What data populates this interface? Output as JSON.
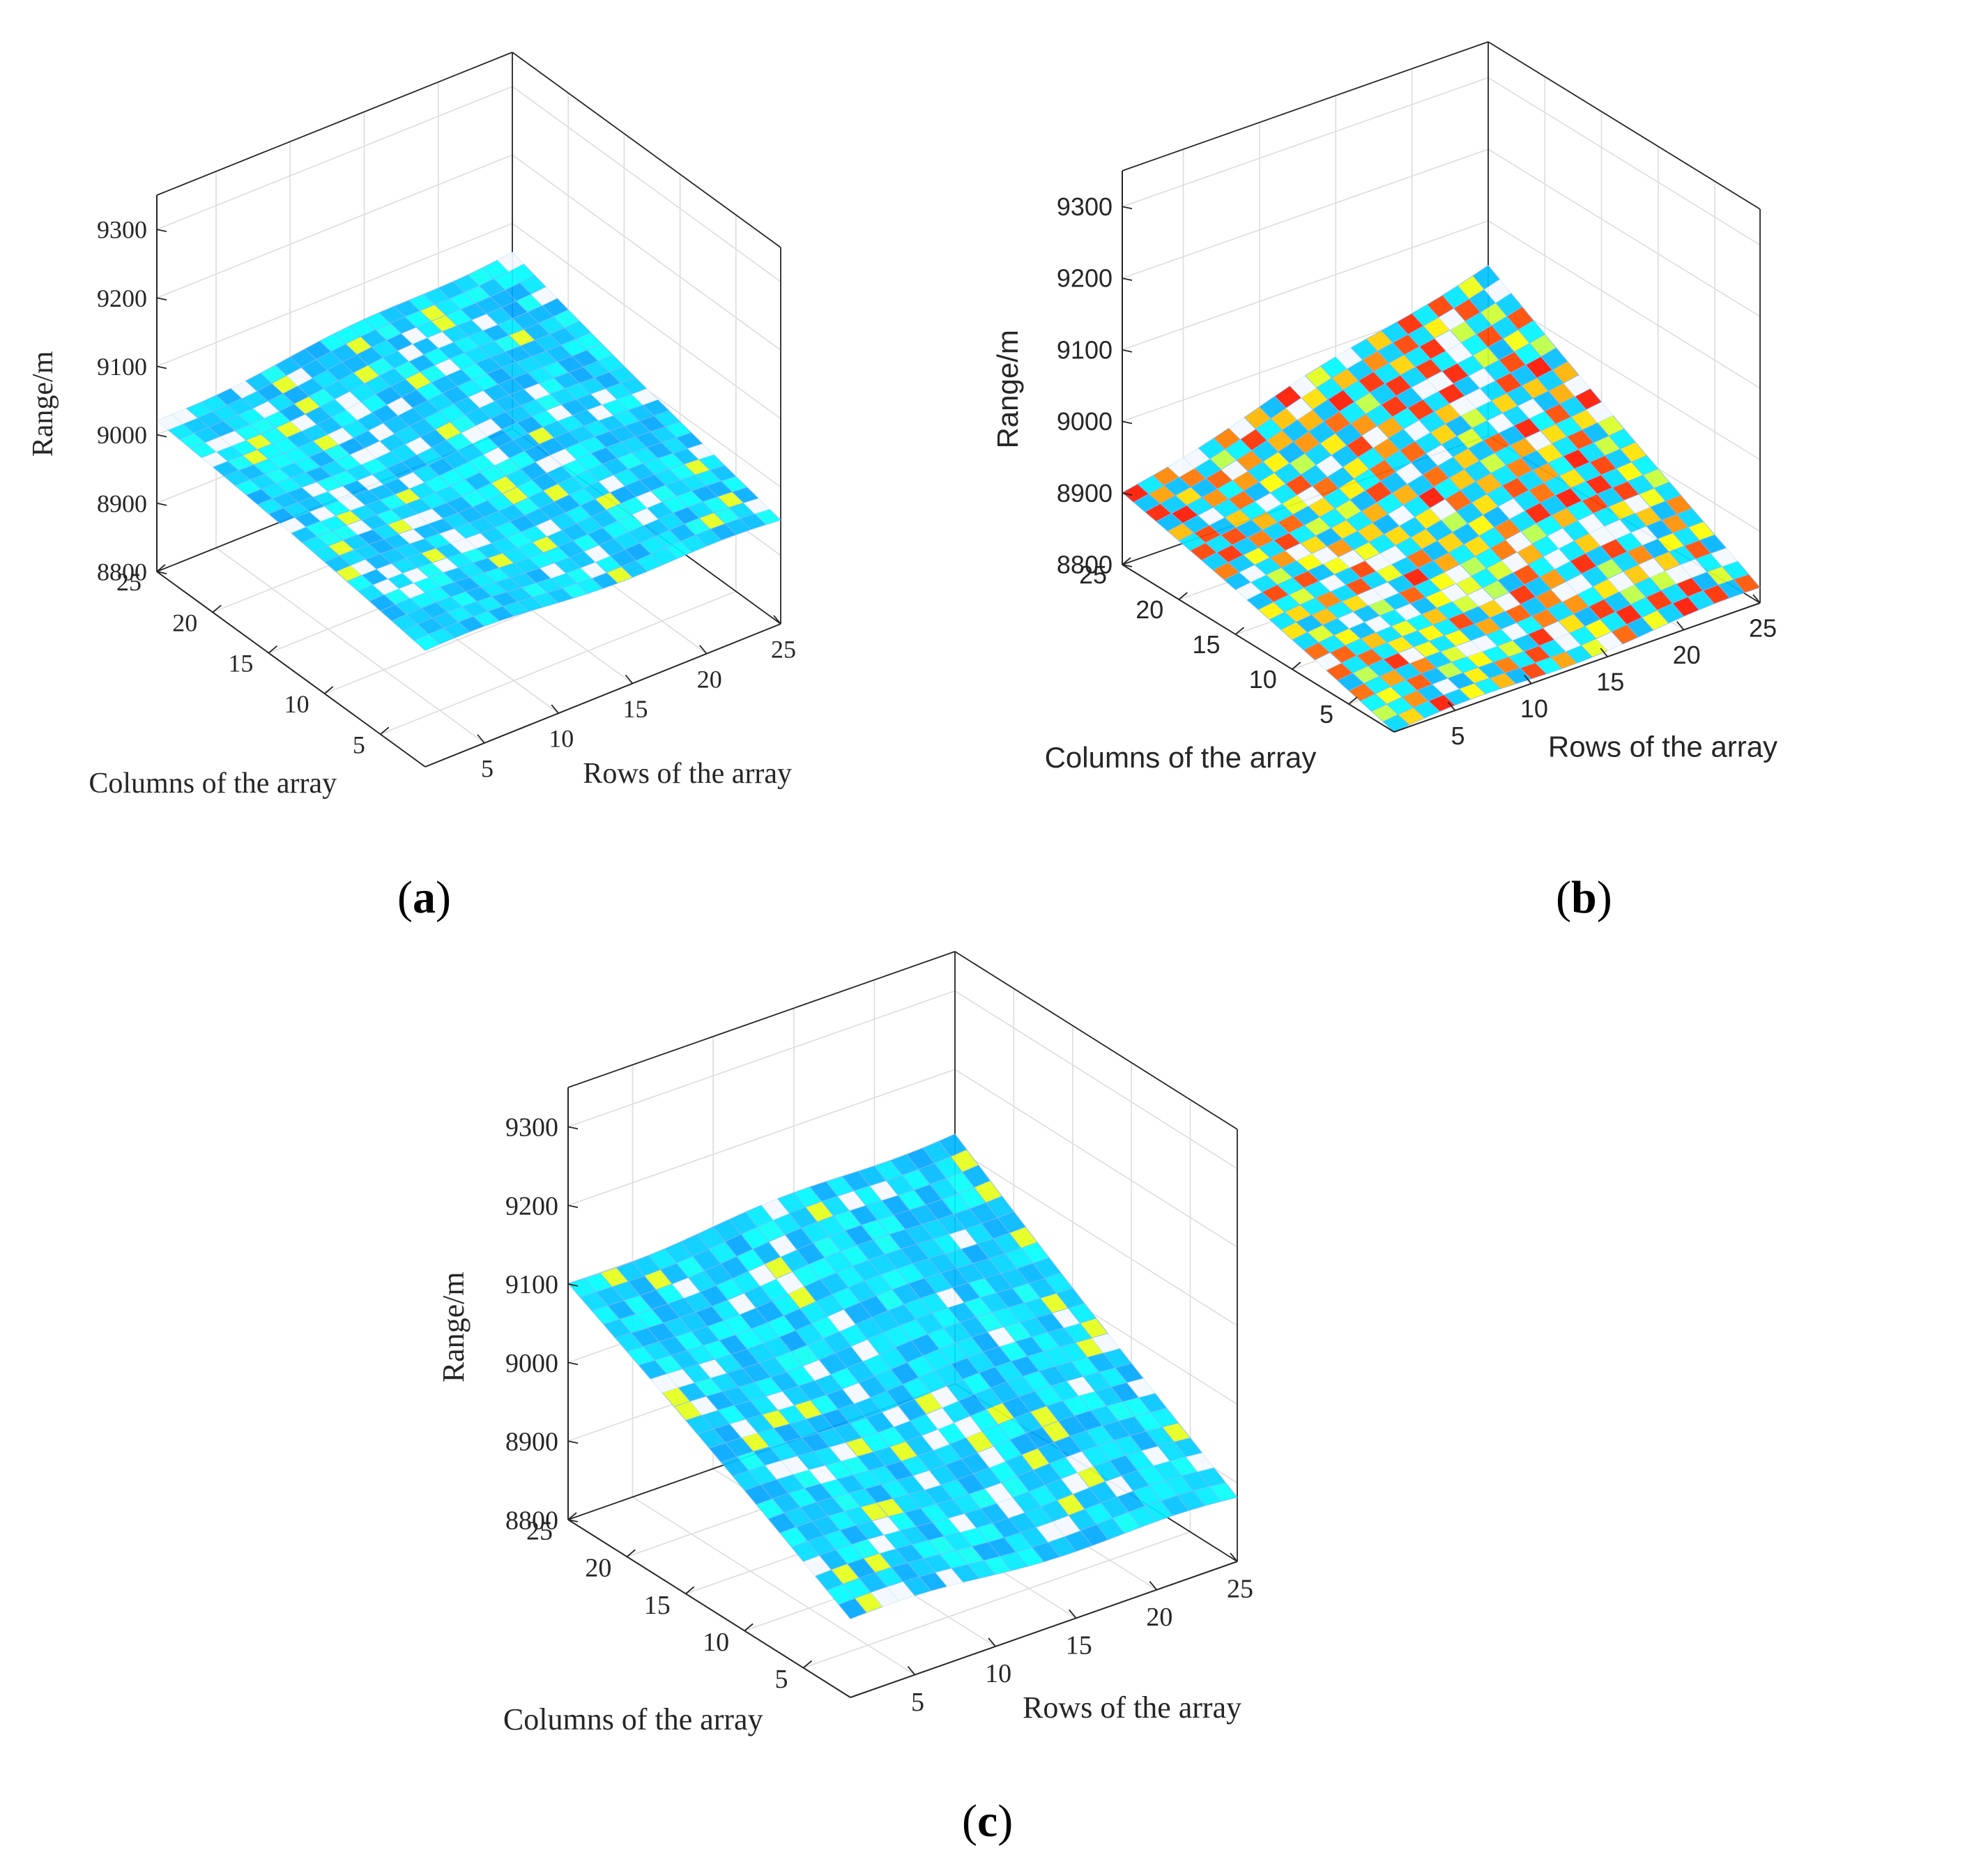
{
  "chart_data": [
    {
      "panel": "a",
      "type": "surface",
      "title": "",
      "xlabel": "Rows of the array",
      "ylabel": "Columns of the array",
      "zlabel": "Range/m",
      "xlim": [
        1,
        25
      ],
      "ylim": [
        1,
        25
      ],
      "zlim": [
        8800,
        9350
      ],
      "xticks": [
        5,
        10,
        15,
        20,
        25
      ],
      "yticks": [
        5,
        10,
        15,
        20,
        25
      ],
      "zticks": [
        8800,
        8900,
        9000,
        9100,
        9200,
        9300
      ],
      "grid": true,
      "surface_corners": {
        "x1_y1": 8970,
        "x25_y1": 8950,
        "x1_y25": 9020,
        "x25_y25": 9060
      },
      "colormap": "jet",
      "pattern": "smooth",
      "tick_font": "serif"
    },
    {
      "panel": "b",
      "type": "surface",
      "title": "",
      "xlabel": "Rows of the array",
      "ylabel": "Columns of the array",
      "zlabel": "Range/m",
      "xlim": [
        1,
        25
      ],
      "ylim": [
        1,
        25
      ],
      "zlim": [
        8800,
        9350
      ],
      "xticks": [
        5,
        10,
        15,
        20,
        25
      ],
      "yticks": [
        5,
        10,
        15,
        20,
        25
      ],
      "zticks": [
        8800,
        8900,
        9000,
        9100,
        9200,
        9300
      ],
      "grid": true,
      "surface_corners": {
        "x1_y1": 8800,
        "x25_y1": 8820,
        "x1_y25": 8900,
        "x25_y25": 9040
      },
      "colormap": "jet",
      "pattern": "striped",
      "tick_font": "sans"
    },
    {
      "panel": "c",
      "type": "surface",
      "title": "",
      "xlabel": "Rows of the array",
      "ylabel": "Columns of the array",
      "zlabel": "Range/m",
      "xlim": [
        1,
        25
      ],
      "ylim": [
        1,
        25
      ],
      "zlim": [
        8800,
        9350
      ],
      "xticks": [
        5,
        10,
        15,
        20,
        25
      ],
      "yticks": [
        5,
        10,
        15,
        20,
        25
      ],
      "zticks": [
        8800,
        8900,
        9000,
        9100,
        9200,
        9300
      ],
      "grid": true,
      "surface_corners": {
        "x1_y1": 8900,
        "x25_y1": 8880,
        "x1_y25": 9100,
        "x25_y25": 9120
      },
      "colormap": "jet",
      "pattern": "smooth",
      "tick_font": "serif"
    }
  ],
  "captions": {
    "a": {
      "open": "(",
      "letter": "a",
      "close": ")"
    },
    "b": {
      "open": "(",
      "letter": "b",
      "close": ")"
    },
    "c": {
      "open": "(",
      "letter": "c",
      "close": ")"
    }
  }
}
